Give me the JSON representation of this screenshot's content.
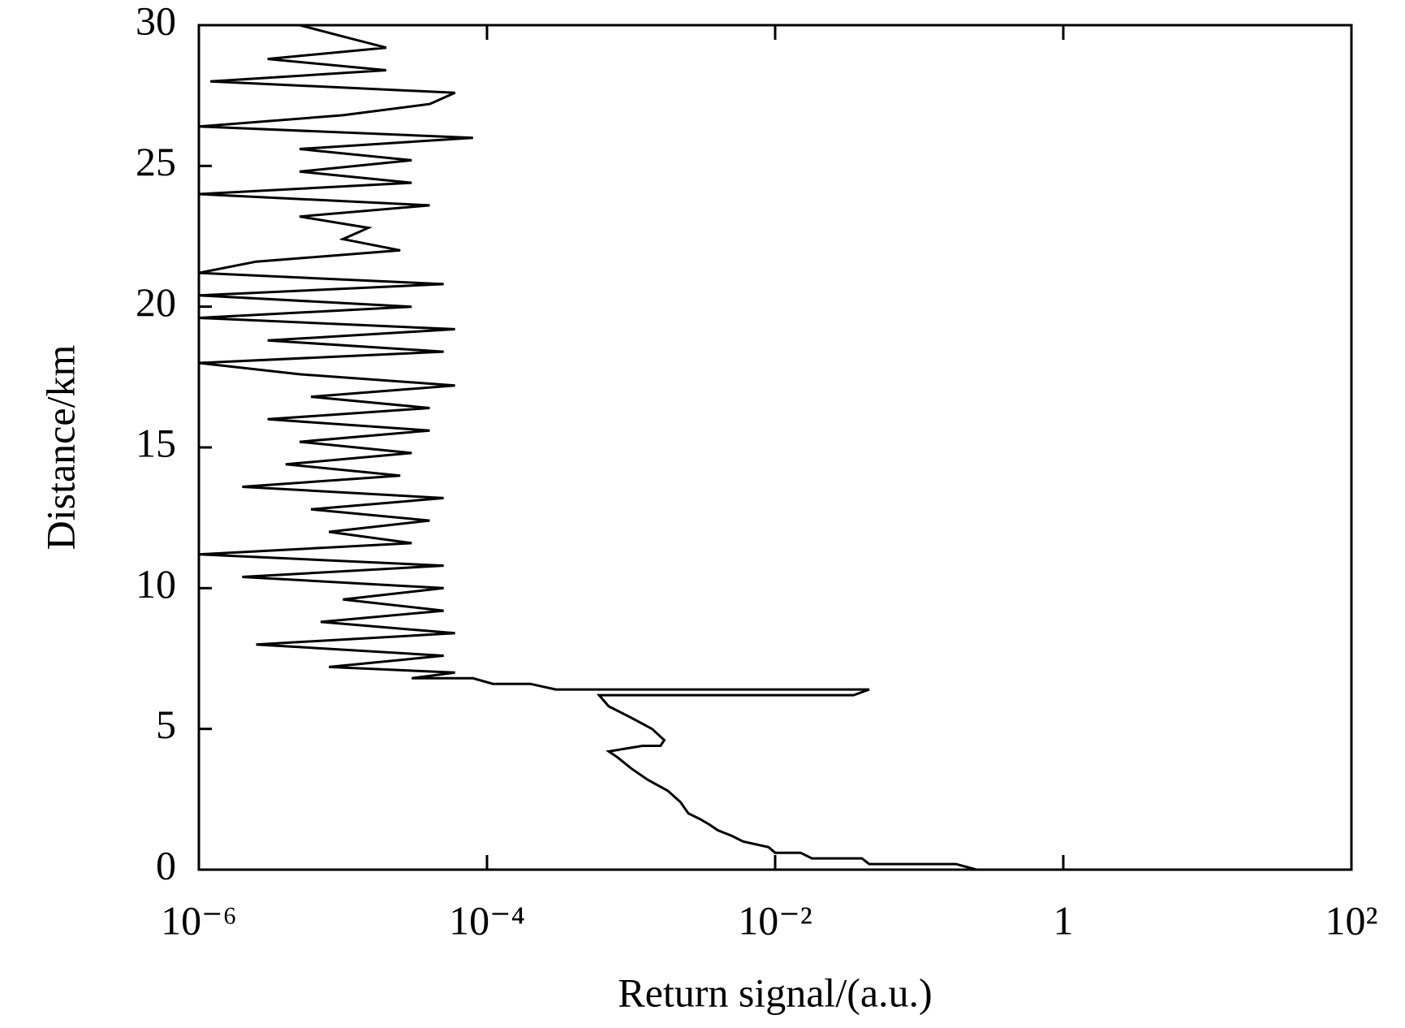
{
  "chart_data": {
    "type": "line",
    "xlabel": "Return signal/(a.u.)",
    "ylabel": "Distance/km",
    "x": [
      0.25,
      0.18,
      0.045,
      0.04,
      0.018,
      0.015,
      0.01,
      0.009,
      0.006,
      0.005,
      0.004,
      0.0035,
      0.003,
      0.0025,
      0.0022,
      0.0018,
      0.0013,
      0.001,
      0.0008,
      0.0007,
      0.0012,
      0.0016,
      0.0017,
      0.0014,
      0.001,
      0.0007,
      0.0006,
      0.035,
      0.045,
      0.0003,
      0.0002,
      0.00011,
      8e-05,
      3e-05,
      6e-05,
      8e-06,
      5e-05,
      2.5e-06,
      6e-05,
      7e-06,
      5e-05,
      1e-05,
      5e-05,
      2e-06,
      5e-05,
      1e-06,
      3e-05,
      8e-06,
      4e-05,
      6e-06,
      5e-05,
      2e-06,
      2.5e-05,
      4e-06,
      3e-05,
      5e-06,
      4e-05,
      3e-06,
      4e-05,
      6e-06,
      6e-05,
      5e-06,
      1e-06,
      5e-05,
      3e-06,
      6e-05,
      1e-06,
      3e-05,
      1e-06,
      5e-05,
      1e-06,
      2.5e-06,
      2.5e-05,
      1e-05,
      1.5e-05,
      5e-06,
      4e-05,
      1e-06,
      3e-05,
      5e-06,
      3e-05,
      5e-06,
      8e-05,
      1e-06,
      1e-05,
      4e-05,
      6e-05,
      1.2e-06,
      2e-05,
      3e-06,
      2e-05,
      1e-05,
      5e-06
    ],
    "values": [
      0,
      0.2,
      0.2,
      0.4,
      0.4,
      0.6,
      0.6,
      0.8,
      1.0,
      1.2,
      1.4,
      1.6,
      1.8,
      2.0,
      2.4,
      2.8,
      3.2,
      3.6,
      4.0,
      4.2,
      4.4,
      4.4,
      4.6,
      5.0,
      5.4,
      5.8,
      6.2,
      6.2,
      6.4,
      6.4,
      6.6,
      6.6,
      6.8,
      6.8,
      7.0,
      7.2,
      7.6,
      8.0,
      8.4,
      8.8,
      9.2,
      9.6,
      10.0,
      10.4,
      10.8,
      11.2,
      11.6,
      12.0,
      12.4,
      12.8,
      13.2,
      13.6,
      14.0,
      14.4,
      14.8,
      15.2,
      15.6,
      16.0,
      16.4,
      16.8,
      17.2,
      17.6,
      18.0,
      18.4,
      18.8,
      19.2,
      19.6,
      20.0,
      20.4,
      20.8,
      21.2,
      21.6,
      22.0,
      22.4,
      22.8,
      23.2,
      23.6,
      24.0,
      24.4,
      24.8,
      25.2,
      25.6,
      26.0,
      26.4,
      26.8,
      27.2,
      27.6,
      28.0,
      28.4,
      28.8,
      29.2,
      29.6,
      30.0
    ],
    "color": "#000000",
    "xscale": "log",
    "xlim": [
      1e-06,
      100
    ],
    "xticks": [
      {
        "value": 1e-06,
        "label": "10⁻⁶"
      },
      {
        "value": 0.0001,
        "label": "10⁻⁴"
      },
      {
        "value": 0.01,
        "label": "10⁻²"
      },
      1,
      {
        "value": 100,
        "label": "10²"
      }
    ],
    "ylim": [
      0,
      30
    ],
    "yticks": [
      0,
      5,
      10,
      15,
      20,
      25,
      30
    ]
  }
}
